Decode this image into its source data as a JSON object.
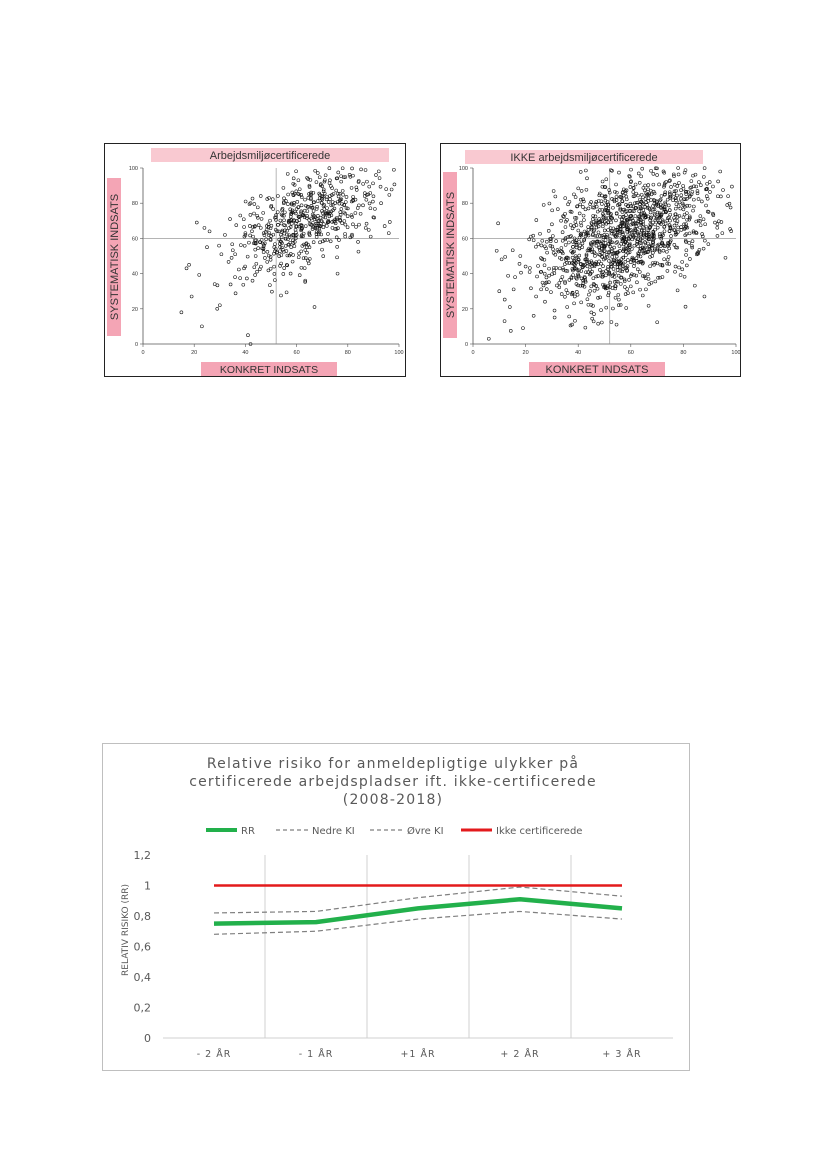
{
  "scatter_left": {
    "title": "Arbejdsmiljøcertificerede",
    "xlabel": "KONKRET INDSATS",
    "ylabel": "SYSTEMATISK INDSATS",
    "xticks": [
      "0",
      "20",
      "40",
      "60",
      "80",
      "100"
    ],
    "yticks": [
      "0",
      "20",
      "40",
      "60",
      "80",
      "100"
    ]
  },
  "scatter_right": {
    "title": "IKKE arbejdsmiljøcertificerede",
    "xlabel": "KONKRET INDSATS",
    "ylabel": "SYSTEMATISK INDSATS",
    "xticks": [
      "0",
      "20",
      "40",
      "60",
      "80",
      "100"
    ],
    "yticks": [
      "0",
      "20",
      "40",
      "60",
      "80",
      "100"
    ]
  },
  "line_chart": {
    "title_line1": "Relative risiko for anmeldepligtige ulykker på",
    "title_line2": "certificerede arbejdspladser ift. ikke-certificerede",
    "title_line3": "(2008-2018)",
    "ylabel": "RELATIV RISIKO (RR)",
    "legend": [
      "RR",
      "Nedre KI",
      "Øvre KI",
      "Ikke certificerede"
    ],
    "yticks": [
      "0",
      "0,2",
      "0,4",
      "0,6",
      "0,8",
      "1",
      "1,2"
    ]
  },
  "chart_data": [
    {
      "type": "scatter",
      "title": "Arbejdsmiljøcertificerede",
      "xlabel": "KONKRET INDSATS",
      "ylabel": "SYSTEMATISK INDSATS",
      "xlim": [
        0,
        100
      ],
      "ylim": [
        0,
        100
      ],
      "grid": false,
      "reference_lines": {
        "x": 52,
        "y": 60
      },
      "points": [
        [
          15,
          18
        ],
        [
          17,
          43
        ],
        [
          18,
          45
        ],
        [
          19,
          27
        ],
        [
          21,
          69
        ],
        [
          23,
          10
        ],
        [
          24,
          66
        ],
        [
          25,
          55
        ],
        [
          26,
          64
        ],
        [
          28,
          34
        ],
        [
          29,
          20
        ],
        [
          30,
          22
        ],
        [
          32,
          62
        ],
        [
          34,
          71
        ],
        [
          36,
          51
        ],
        [
          38,
          73
        ],
        [
          40,
          63
        ],
        [
          41,
          5
        ],
        [
          42,
          0
        ],
        [
          43,
          61
        ],
        [
          44,
          50
        ],
        [
          46,
          66
        ],
        [
          47,
          54
        ],
        [
          49,
          68
        ],
        [
          50,
          78
        ],
        [
          52,
          72
        ],
        [
          53,
          64
        ],
        [
          54,
          58
        ],
        [
          55,
          80
        ],
        [
          57,
          69
        ],
        [
          58,
          75
        ],
        [
          60,
          62
        ],
        [
          61,
          85
        ],
        [
          62,
          67
        ],
        [
          63,
          73
        ],
        [
          64,
          55
        ],
        [
          65,
          90
        ],
        [
          67,
          21
        ],
        [
          68,
          78
        ],
        [
          69,
          64
        ],
        [
          70,
          84
        ],
        [
          71,
          59
        ],
        [
          72,
          74
        ],
        [
          73,
          93
        ],
        [
          74,
          66
        ],
        [
          75,
          80
        ],
        [
          76,
          40
        ],
        [
          77,
          70
        ],
        [
          78,
          87
        ],
        [
          79,
          61
        ],
        [
          80,
          77
        ],
        [
          81,
          95
        ],
        [
          82,
          68
        ],
        [
          83,
          82
        ],
        [
          84,
          58
        ],
        [
          85,
          74
        ],
        [
          86,
          91
        ],
        [
          87,
          66
        ],
        [
          88,
          85
        ],
        [
          90,
          72
        ],
        [
          91,
          96
        ],
        [
          93,
          80
        ],
        [
          95,
          88
        ],
        [
          96,
          63
        ],
        [
          98,
          99
        ]
      ],
      "note": "dense cloud of points, approximately 600 observations centred around (60, 70)"
    },
    {
      "type": "scatter",
      "title": "IKKE arbejdsmiljøcertificerede",
      "xlabel": "KONKRET INDSATS",
      "ylabel": "SYSTEMATISK INDSATS",
      "xlim": [
        0,
        100
      ],
      "ylim": [
        0,
        100
      ],
      "grid": false,
      "reference_lines": {
        "x": 52,
        "y": 60
      },
      "points": [
        [
          6,
          3
        ],
        [
          9,
          53
        ],
        [
          10,
          30
        ],
        [
          12,
          13
        ],
        [
          14,
          21
        ],
        [
          16,
          38
        ],
        [
          18,
          50
        ],
        [
          19,
          9
        ],
        [
          20,
          44
        ],
        [
          22,
          61
        ],
        [
          24,
          27
        ],
        [
          26,
          56
        ],
        [
          28,
          35
        ],
        [
          30,
          68
        ],
        [
          31,
          19
        ],
        [
          33,
          49
        ],
        [
          35,
          74
        ],
        [
          36,
          29
        ],
        [
          38,
          58
        ],
        [
          40,
          39
        ],
        [
          41,
          82
        ],
        [
          43,
          63
        ],
        [
          45,
          47
        ],
        [
          46,
          17
        ],
        [
          48,
          71
        ],
        [
          50,
          55
        ],
        [
          52,
          86
        ],
        [
          53,
          64
        ],
        [
          55,
          42
        ],
        [
          56,
          77
        ],
        [
          58,
          58
        ],
        [
          60,
          92
        ],
        [
          61,
          68
        ],
        [
          63,
          51
        ],
        [
          64,
          81
        ],
        [
          66,
          62
        ],
        [
          67,
          34
        ],
        [
          69,
          74
        ],
        [
          70,
          96
        ],
        [
          72,
          57
        ],
        [
          73,
          85
        ],
        [
          75,
          66
        ],
        [
          77,
          44
        ],
        [
          78,
          100
        ],
        [
          80,
          72
        ],
        [
          81,
          58
        ],
        [
          83,
          89
        ],
        [
          85,
          63
        ],
        [
          87,
          81
        ],
        [
          88,
          27
        ],
        [
          90,
          92
        ],
        [
          92,
          69
        ],
        [
          94,
          98
        ],
        [
          96,
          49
        ],
        [
          97,
          84
        ]
      ],
      "note": "dense cloud of points, approximately 1300 observations centred around (58, 62)"
    },
    {
      "type": "line",
      "title": "Relative risiko for anmeldepligtige ulykker på certificerede arbejdspladser ift. ikke-certificerede (2008-2018)",
      "xlabel": "",
      "ylabel": "RELATIV RISIKO (RR)",
      "categories": [
        "- 2 ÅR",
        "- 1 ÅR",
        "+1 ÅR",
        "+ 2 ÅR",
        "+ 3 ÅR"
      ],
      "ylim": [
        0,
        1.2
      ],
      "legend_position": "top",
      "series": [
        {
          "name": "RR",
          "values": [
            0.75,
            0.76,
            0.85,
            0.91,
            0.85
          ],
          "color": "#22b04b",
          "style": "solid-thick"
        },
        {
          "name": "Nedre KI",
          "values": [
            0.68,
            0.7,
            0.78,
            0.83,
            0.78
          ],
          "color": "#7f7f7f",
          "style": "dashed"
        },
        {
          "name": "Øvre KI",
          "values": [
            0.82,
            0.83,
            0.92,
            0.99,
            0.93
          ],
          "color": "#7f7f7f",
          "style": "dashed"
        },
        {
          "name": "Ikke certificerede",
          "values": [
            1,
            1,
            1,
            1,
            1
          ],
          "color": "#e31a1c",
          "style": "solid"
        }
      ]
    }
  ]
}
